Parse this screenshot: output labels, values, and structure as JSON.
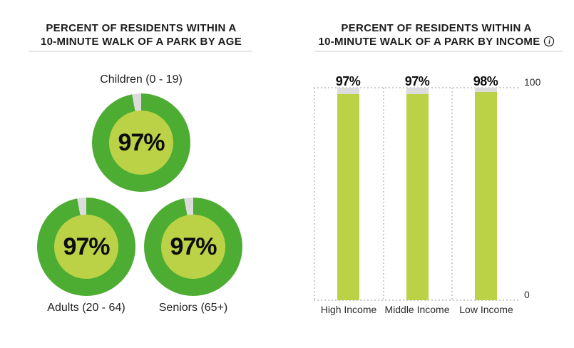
{
  "colors": {
    "ring_green": "#4dad33",
    "light_green": "#bbd246",
    "gap_gray": "#dcdcdc",
    "divider_gray": "#e6e6e6",
    "dotted_gray": "#cccccc",
    "text_black": "#1c1c1c"
  },
  "age_panel": {
    "title_line1": "PERCENT OF RESIDENTS WITHIN A",
    "title_line2": "10-MINUTE WALK OF A PARK BY AGE",
    "donuts": [
      {
        "label": "Children (0 - 19)",
        "value": "97%",
        "percent": 97
      },
      {
        "label": "Adults (20 - 64)",
        "value": "97%",
        "percent": 97
      },
      {
        "label": "Seniors (65+)",
        "value": "97%",
        "percent": 97
      }
    ]
  },
  "income_panel": {
    "title_line1": "PERCENT OF RESIDENTS WITHIN A",
    "title_line2": "10-MINUTE WALK OF A PARK BY INCOME",
    "info_icon": "info-icon",
    "axis": {
      "max_label": "100",
      "min_label": "0",
      "max": 100,
      "min": 0
    },
    "bars": [
      {
        "label": "High Income",
        "value": "97%",
        "percent": 97
      },
      {
        "label": "Middle Income",
        "value": "97%",
        "percent": 97
      },
      {
        "label": "Low Income",
        "value": "98%",
        "percent": 98
      }
    ]
  },
  "chart_data": [
    {
      "type": "pie",
      "subtype": "donut",
      "title": "PERCENT OF RESIDENTS WITHIN A 10-MINUTE WALK OF A PARK BY AGE",
      "categories": [
        "Children (0 - 19)",
        "Adults (20 - 64)",
        "Seniors (65+)"
      ],
      "values": [
        97,
        97,
        97
      ],
      "unit": "%",
      "note": "each donut shows value% filled green, remainder gray notch at top"
    },
    {
      "type": "bar",
      "title": "PERCENT OF RESIDENTS WITHIN A 10-MINUTE WALK OF A PARK BY INCOME",
      "categories": [
        "High Income",
        "Middle Income",
        "Low Income"
      ],
      "values": [
        97,
        97,
        98
      ],
      "data_labels": [
        "97%",
        "97%",
        "98%"
      ],
      "xlabel": "",
      "ylabel": "",
      "ylim": [
        0,
        100
      ],
      "ytick_labels": [
        "0",
        "100"
      ],
      "grid": "dotted",
      "legend": "none",
      "note": "full-height gray background bars to 100 with green fill to value"
    }
  ]
}
